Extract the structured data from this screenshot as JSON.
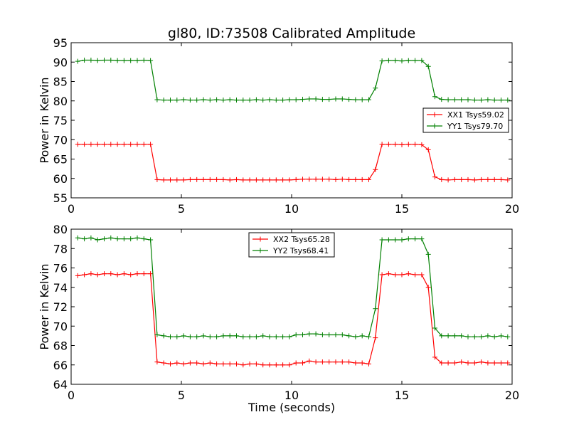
{
  "title": "gl80, ID:73508 Calibrated Amplitude",
  "chart_data": [
    {
      "type": "line",
      "xlabel": "",
      "ylabel": "Power in Kelvin",
      "xlim": [
        0,
        20
      ],
      "ylim": [
        55,
        95
      ],
      "xticks": [
        0,
        5,
        10,
        15,
        20
      ],
      "yticks": [
        55,
        60,
        65,
        70,
        75,
        80,
        85,
        90,
        95
      ],
      "grid": false,
      "legend_position": "center-right",
      "x": [
        0.3,
        0.6,
        0.9,
        1.2,
        1.5,
        1.8,
        2.1,
        2.4,
        2.7,
        3.0,
        3.3,
        3.6,
        3.9,
        4.2,
        4.5,
        4.8,
        5.1,
        5.4,
        5.7,
        6.0,
        6.3,
        6.6,
        6.9,
        7.2,
        7.5,
        7.8,
        8.1,
        8.4,
        8.7,
        9.0,
        9.3,
        9.6,
        9.9,
        10.2,
        10.5,
        10.8,
        11.1,
        11.4,
        11.7,
        12.0,
        12.3,
        12.6,
        12.9,
        13.2,
        13.5,
        13.8,
        14.1,
        14.4,
        14.7,
        15.0,
        15.3,
        15.6,
        15.9,
        16.2,
        16.5,
        16.8,
        17.1,
        17.4,
        17.7,
        18.0,
        18.3,
        18.6,
        18.9,
        19.2,
        19.5,
        19.8
      ],
      "series": [
        {
          "name": "XX1 Tsys59.02",
          "color": "#ff0000",
          "values": [
            68.8,
            68.8,
            68.8,
            68.8,
            68.8,
            68.8,
            68.8,
            68.8,
            68.8,
            68.8,
            68.8,
            68.8,
            59.7,
            59.6,
            59.6,
            59.6,
            59.6,
            59.7,
            59.7,
            59.7,
            59.7,
            59.7,
            59.7,
            59.6,
            59.7,
            59.6,
            59.6,
            59.6,
            59.6,
            59.6,
            59.6,
            59.6,
            59.6,
            59.7,
            59.8,
            59.8,
            59.8,
            59.8,
            59.8,
            59.7,
            59.8,
            59.7,
            59.7,
            59.7,
            59.7,
            62.3,
            68.8,
            68.8,
            68.8,
            68.7,
            68.8,
            68.8,
            68.7,
            67.4,
            60.4,
            59.7,
            59.6,
            59.7,
            59.7,
            59.7,
            59.6,
            59.7,
            59.7,
            59.7,
            59.7,
            59.6
          ]
        },
        {
          "name": "YY1 Tsys79.70",
          "color": "#008000",
          "values": [
            90.2,
            90.5,
            90.5,
            90.4,
            90.5,
            90.5,
            90.4,
            90.4,
            90.4,
            90.4,
            90.5,
            90.4,
            80.3,
            80.2,
            80.2,
            80.2,
            80.3,
            80.2,
            80.2,
            80.3,
            80.2,
            80.3,
            80.2,
            80.3,
            80.2,
            80.2,
            80.2,
            80.3,
            80.2,
            80.3,
            80.2,
            80.2,
            80.3,
            80.3,
            80.4,
            80.5,
            80.5,
            80.4,
            80.4,
            80.5,
            80.5,
            80.4,
            80.3,
            80.3,
            80.3,
            83.3,
            90.3,
            90.4,
            90.4,
            90.3,
            90.4,
            90.4,
            90.4,
            88.9,
            81.1,
            80.4,
            80.3,
            80.3,
            80.3,
            80.3,
            80.2,
            80.2,
            80.3,
            80.2,
            80.2,
            80.2
          ]
        }
      ]
    },
    {
      "type": "line",
      "xlabel": "Time (seconds)",
      "ylabel": "Power in Kelvin",
      "xlim": [
        0,
        20
      ],
      "ylim": [
        64,
        80
      ],
      "xticks": [
        0,
        5,
        10,
        15,
        20
      ],
      "yticks": [
        64,
        66,
        68,
        70,
        72,
        74,
        76,
        78,
        80
      ],
      "grid": false,
      "legend_position": "top-center",
      "x": [
        0.3,
        0.6,
        0.9,
        1.2,
        1.5,
        1.8,
        2.1,
        2.4,
        2.7,
        3.0,
        3.3,
        3.6,
        3.9,
        4.2,
        4.5,
        4.8,
        5.1,
        5.4,
        5.7,
        6.0,
        6.3,
        6.6,
        6.9,
        7.2,
        7.5,
        7.8,
        8.1,
        8.4,
        8.7,
        9.0,
        9.3,
        9.6,
        9.9,
        10.2,
        10.5,
        10.8,
        11.1,
        11.4,
        11.7,
        12.0,
        12.3,
        12.6,
        12.9,
        13.2,
        13.5,
        13.8,
        14.1,
        14.4,
        14.7,
        15.0,
        15.3,
        15.6,
        15.9,
        16.2,
        16.5,
        16.8,
        17.1,
        17.4,
        17.7,
        18.0,
        18.3,
        18.6,
        18.9,
        19.2,
        19.5,
        19.8
      ],
      "series": [
        {
          "name": "XX2 Tsys65.28",
          "color": "#ff0000",
          "values": [
            75.2,
            75.3,
            75.4,
            75.3,
            75.4,
            75.4,
            75.3,
            75.4,
            75.3,
            75.4,
            75.4,
            75.4,
            66.3,
            66.2,
            66.1,
            66.2,
            66.1,
            66.2,
            66.2,
            66.1,
            66.2,
            66.1,
            66.1,
            66.1,
            66.1,
            66.0,
            66.1,
            66.1,
            66.0,
            66.0,
            66.0,
            66.0,
            66.0,
            66.2,
            66.2,
            66.4,
            66.3,
            66.3,
            66.3,
            66.3,
            66.3,
            66.3,
            66.2,
            66.2,
            66.1,
            68.8,
            75.3,
            75.4,
            75.3,
            75.3,
            75.4,
            75.3,
            75.3,
            74.0,
            66.8,
            66.2,
            66.2,
            66.2,
            66.3,
            66.2,
            66.2,
            66.3,
            66.2,
            66.2,
            66.2,
            66.2
          ]
        },
        {
          "name": "YY2 Tsys68.41",
          "color": "#008000",
          "values": [
            79.1,
            79.0,
            79.1,
            78.9,
            79.0,
            79.1,
            79.0,
            79.0,
            79.0,
            79.1,
            79.0,
            78.9,
            69.1,
            69.0,
            68.9,
            68.9,
            69.0,
            68.9,
            68.9,
            69.0,
            68.9,
            68.9,
            69.0,
            69.0,
            69.0,
            68.9,
            68.9,
            68.9,
            69.0,
            68.9,
            68.9,
            68.9,
            68.9,
            69.1,
            69.1,
            69.2,
            69.2,
            69.1,
            69.1,
            69.1,
            69.1,
            69.0,
            68.9,
            69.0,
            68.9,
            71.8,
            78.9,
            78.9,
            78.9,
            78.9,
            79.0,
            79.0,
            79.0,
            77.4,
            69.8,
            69.0,
            69.0,
            69.0,
            69.0,
            68.9,
            68.9,
            68.9,
            69.0,
            68.9,
            69.0,
            68.9
          ]
        }
      ]
    }
  ]
}
